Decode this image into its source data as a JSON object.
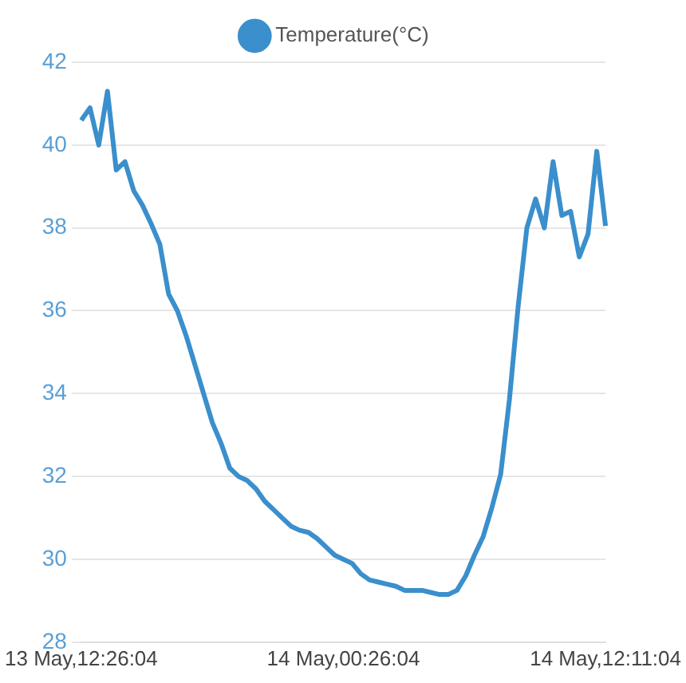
{
  "chart_data": {
    "type": "line",
    "categories": [
      "13 May,12:26:04",
      null,
      null,
      null,
      null,
      null,
      null,
      null,
      null,
      null,
      null,
      null,
      null,
      null,
      null,
      null,
      null,
      null,
      null,
      null,
      null,
      null,
      null,
      null,
      null,
      null,
      null,
      null,
      null,
      null,
      "14 May,00:26:04",
      null,
      null,
      null,
      null,
      null,
      null,
      null,
      null,
      null,
      null,
      null,
      null,
      null,
      null,
      null,
      null,
      null,
      null,
      null,
      null,
      null,
      null,
      null,
      null,
      null,
      null,
      null,
      null,
      null,
      "14 May,12:11:04"
    ],
    "series": [
      {
        "name": "Temperature(°C)",
        "color": "#3a8fcc",
        "values": [
          40.6,
          40.9,
          40.0,
          41.3,
          39.4,
          39.6,
          38.9,
          38.55,
          38.1,
          37.6,
          36.4,
          36.0,
          35.4,
          34.7,
          34.0,
          33.3,
          32.8,
          32.2,
          32.0,
          31.9,
          31.7,
          31.4,
          31.2,
          31.0,
          30.8,
          30.7,
          30.65,
          30.5,
          30.3,
          30.1,
          30.0,
          29.9,
          29.65,
          29.5,
          29.45,
          29.4,
          29.35,
          29.25,
          29.25,
          29.25,
          29.2,
          29.15,
          29.15,
          29.25,
          29.6,
          30.1,
          30.55,
          31.25,
          32.05,
          33.85,
          36.1,
          38.0,
          38.7,
          38.0,
          39.6,
          38.3,
          38.4,
          37.3,
          37.85,
          39.85,
          38.05
        ]
      }
    ],
    "ylim": [
      28,
      42
    ],
    "yticks": [
      28,
      30,
      32,
      34,
      36,
      38,
      40,
      42
    ],
    "grid": "y",
    "legend": "top",
    "marker": "none",
    "line_style": "solid"
  }
}
